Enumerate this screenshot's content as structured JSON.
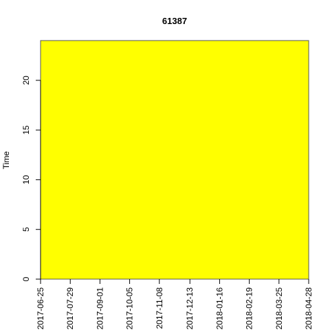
{
  "chart_data": {
    "type": "heatmap",
    "title": "61387",
    "xlabel": "",
    "ylabel": "Time",
    "x_ticks": [
      "2017-06-25",
      "2017-07-29",
      "2017-09-01",
      "2017-10-05",
      "2017-11-08",
      "2017-12-13",
      "2018-01-16",
      "2018-02-19",
      "2018-03-25",
      "2018-04-28"
    ],
    "xlim": [
      "2017-06-25",
      "2018-04-28"
    ],
    "y_ticks": [
      0,
      5,
      10,
      15,
      20
    ],
    "ylim": [
      0,
      24
    ],
    "fill_color": "#ffff00",
    "grid": false,
    "legend": "none"
  }
}
